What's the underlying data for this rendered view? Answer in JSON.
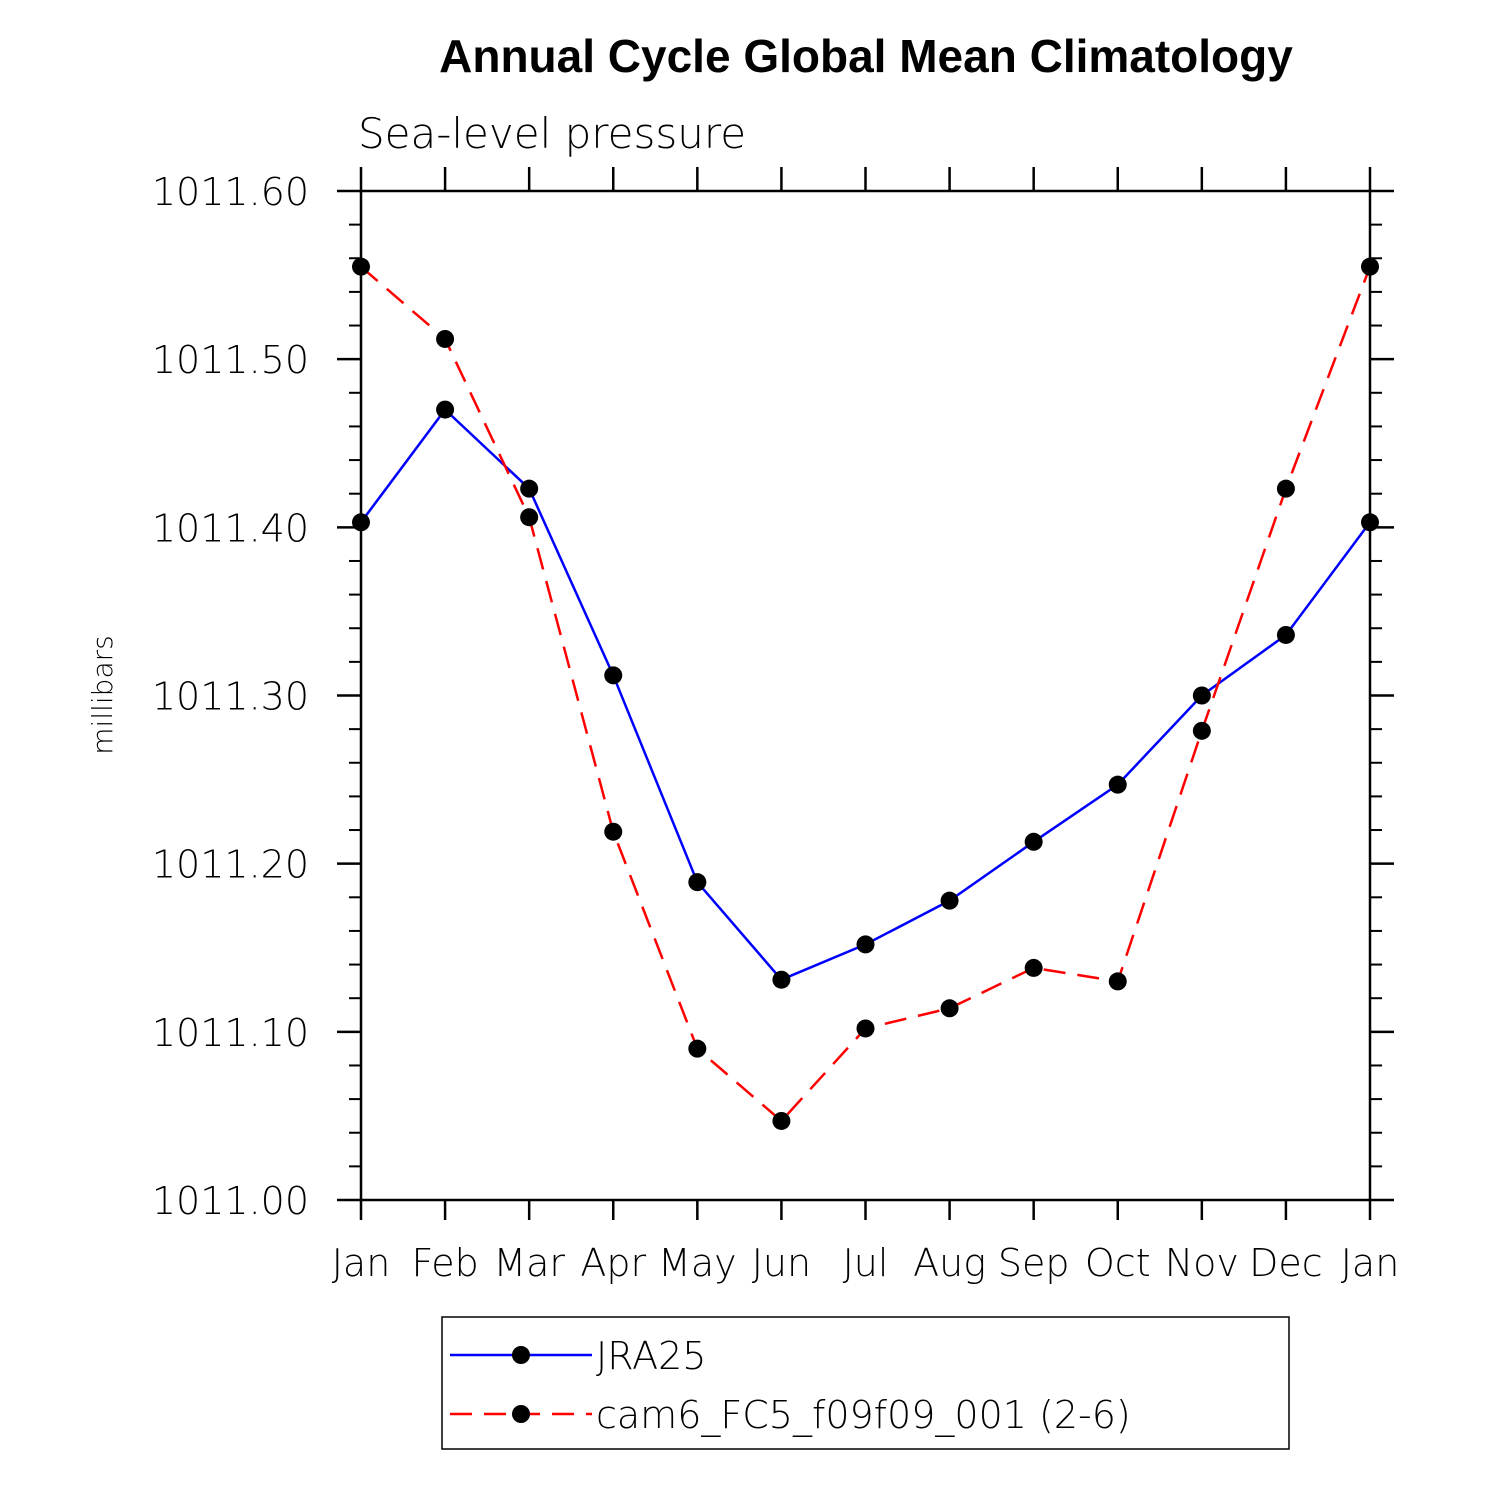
{
  "chart_data": {
    "type": "line",
    "title": "Annual Cycle Global Mean Climatology",
    "subtitle": "Sea-level pressure",
    "xlabel": "",
    "ylabel": "millibars",
    "categories": [
      "Jan",
      "Feb",
      "Mar",
      "Apr",
      "May",
      "Jun",
      "Jul",
      "Aug",
      "Sep",
      "Oct",
      "Nov",
      "Dec",
      "Jan"
    ],
    "ylim": [
      1011.0,
      1011.6
    ],
    "yticks": [
      "1011.00",
      "1011.10",
      "1011.20",
      "1011.30",
      "1011.40",
      "1011.50",
      "1011.60"
    ],
    "yticks_values": [
      1011.0,
      1011.1,
      1011.2,
      1011.3,
      1011.4,
      1011.5,
      1011.6
    ],
    "grid": false,
    "legend_position": "bottom",
    "series": [
      {
        "name": "JRA25",
        "color": "#0000ff",
        "dash": "solid",
        "marker": "filled-circle",
        "values": [
          1011.403,
          1011.47,
          1011.423,
          1011.312,
          1011.189,
          1011.131,
          1011.152,
          1011.178,
          1011.213,
          1011.247,
          1011.3,
          1011.336,
          1011.403
        ]
      },
      {
        "name": "cam6_FC5_f09f09_001 (2-6)",
        "color": "#ff0000",
        "dash": "dashed",
        "marker": "filled-circle",
        "values": [
          1011.555,
          1011.512,
          1011.406,
          1011.219,
          1011.09,
          1011.047,
          1011.102,
          1011.114,
          1011.138,
          1011.13,
          1011.279,
          1011.423,
          1011.555
        ]
      }
    ]
  }
}
